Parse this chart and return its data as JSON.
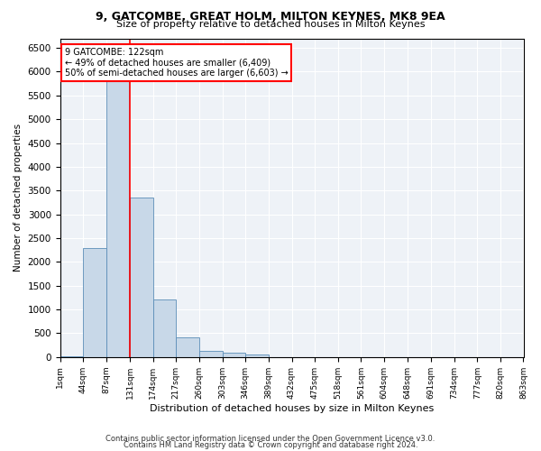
{
  "title1": "9, GATCOMBE, GREAT HOLM, MILTON KEYNES, MK8 9EA",
  "title2": "Size of property relative to detached houses in Milton Keynes",
  "xlabel": "Distribution of detached houses by size in Milton Keynes",
  "ylabel": "Number of detached properties",
  "footer1": "Contains HM Land Registry data © Crown copyright and database right 2024.",
  "footer2": "Contains public sector information licensed under the Open Government Licence v3.0.",
  "annotation_line1": "9 GATCOMBE: 122sqm",
  "annotation_line2": "← 49% of detached houses are smaller (6,409)",
  "annotation_line3": "50% of semi-detached houses are larger (6,603) →",
  "property_size_bin": 3,
  "bar_color": "#c8d8e8",
  "bar_edge_color": "#5b8db8",
  "vline_color": "red",
  "background_color": "#eef2f7",
  "bins": [
    1,
    44,
    87,
    131,
    174,
    217,
    260,
    303,
    346,
    389,
    432,
    475,
    518,
    561,
    604,
    648,
    691,
    734,
    777,
    820,
    863
  ],
  "counts": [
    25,
    2300,
    6100,
    3350,
    1220,
    420,
    130,
    100,
    45,
    5,
    5,
    0,
    0,
    0,
    0,
    0,
    0,
    0,
    0,
    0
  ],
  "ylim": [
    0,
    6700
  ],
  "yticks": [
    0,
    500,
    1000,
    1500,
    2000,
    2500,
    3000,
    3500,
    4000,
    4500,
    5000,
    5500,
    6000,
    6500
  ]
}
